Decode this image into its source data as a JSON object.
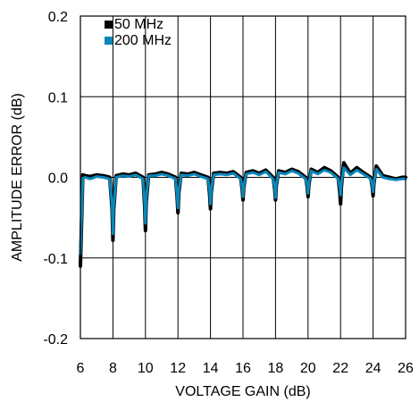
{
  "chart_data": {
    "type": "line",
    "title": "",
    "xlabel": "VOLTAGE GAIN (dB)",
    "ylabel": "AMPLITUDE ERROR (dB)",
    "xlim": [
      6,
      26
    ],
    "ylim": [
      -0.2,
      0.2
    ],
    "x_ticks": [
      "6",
      "8",
      "10",
      "12",
      "14",
      "16",
      "18",
      "20",
      "22",
      "24",
      "26"
    ],
    "y_ticks": [
      "0.2",
      "0.1",
      "0.0",
      "-0.1",
      "-0.2"
    ],
    "x_tick_values": [
      6,
      8,
      10,
      12,
      14,
      16,
      18,
      20,
      22,
      24,
      26
    ],
    "y_tick_values": [
      0.2,
      0.1,
      0.0,
      -0.1,
      -0.2
    ],
    "grid": "vertical",
    "legend_position": "top-left",
    "series": [
      {
        "name": "50 MHz",
        "color": "#000000",
        "x": [
          6.0,
          6.15,
          6.3,
          6.6,
          7.0,
          7.4,
          7.8,
          7.95,
          8.0,
          8.05,
          8.2,
          8.6,
          9.0,
          9.4,
          9.85,
          9.95,
          10.0,
          10.05,
          10.2,
          10.6,
          11.0,
          11.4,
          11.85,
          11.95,
          12.0,
          12.05,
          12.2,
          12.6,
          13.0,
          13.4,
          13.85,
          13.95,
          14.0,
          14.05,
          14.2,
          14.6,
          15.0,
          15.4,
          15.85,
          15.95,
          16.0,
          16.05,
          16.2,
          16.6,
          17.0,
          17.4,
          17.85,
          17.95,
          18.0,
          18.05,
          18.2,
          18.6,
          19.0,
          19.4,
          19.85,
          19.95,
          20.0,
          20.05,
          20.2,
          20.6,
          21.0,
          21.4,
          21.85,
          21.95,
          22.0,
          22.05,
          22.2,
          22.6,
          23.0,
          23.4,
          23.85,
          23.95,
          24.0,
          24.05,
          24.2,
          24.6,
          25.0,
          25.4,
          25.8,
          26.0
        ],
        "y": [
          -0.11,
          0.003,
          0.002,
          0.001,
          0.003,
          0.002,
          0.0,
          -0.04,
          -0.078,
          -0.04,
          0.002,
          0.004,
          0.003,
          0.005,
          0.0,
          -0.035,
          -0.066,
          -0.03,
          0.003,
          0.004,
          0.006,
          0.004,
          0.0,
          -0.025,
          -0.044,
          -0.02,
          0.005,
          0.004,
          0.006,
          0.003,
          0.0,
          -0.022,
          -0.039,
          -0.018,
          0.005,
          0.006,
          0.005,
          0.007,
          0.0,
          -0.015,
          -0.028,
          -0.012,
          0.006,
          0.008,
          0.005,
          0.009,
          0.0,
          -0.015,
          -0.028,
          -0.01,
          0.008,
          0.006,
          0.01,
          0.007,
          0.0,
          -0.012,
          -0.024,
          -0.01,
          0.01,
          0.006,
          0.012,
          0.008,
          0.0,
          -0.018,
          -0.033,
          -0.012,
          0.018,
          0.005,
          0.012,
          0.006,
          0.0,
          -0.012,
          -0.023,
          -0.008,
          0.014,
          0.002,
          0.0,
          -0.002,
          0.0,
          0.0
        ]
      },
      {
        "name": "200 MHz",
        "color": "#0a86b8",
        "x": [
          6.0,
          6.15,
          6.3,
          6.6,
          7.0,
          7.4,
          7.8,
          7.95,
          8.0,
          8.05,
          8.2,
          8.6,
          9.0,
          9.4,
          9.85,
          9.95,
          10.0,
          10.05,
          10.2,
          10.6,
          11.0,
          11.4,
          11.85,
          11.95,
          12.0,
          12.05,
          12.2,
          12.6,
          13.0,
          13.4,
          13.85,
          13.95,
          14.0,
          14.05,
          14.2,
          14.6,
          15.0,
          15.4,
          15.85,
          15.95,
          16.0,
          16.05,
          16.2,
          16.6,
          17.0,
          17.4,
          17.85,
          17.95,
          18.0,
          18.05,
          18.2,
          18.6,
          19.0,
          19.4,
          19.85,
          19.95,
          20.0,
          20.05,
          20.2,
          20.6,
          21.0,
          21.4,
          21.85,
          21.95,
          22.0,
          22.05,
          22.2,
          22.6,
          23.0,
          23.4,
          23.85,
          23.95,
          24.0,
          24.05,
          24.2,
          24.6,
          25.0,
          25.4,
          25.8,
          26.0
        ],
        "y": [
          -0.095,
          -0.001,
          0.0,
          -0.002,
          0.001,
          0.0,
          -0.002,
          -0.035,
          -0.07,
          -0.035,
          0.0,
          0.002,
          0.001,
          0.003,
          -0.002,
          -0.03,
          -0.057,
          -0.025,
          0.002,
          0.002,
          0.004,
          0.002,
          -0.002,
          -0.022,
          -0.038,
          -0.017,
          0.003,
          0.002,
          0.004,
          0.001,
          -0.002,
          -0.018,
          -0.033,
          -0.015,
          0.003,
          0.004,
          0.003,
          0.005,
          -0.002,
          -0.012,
          -0.024,
          -0.01,
          0.004,
          0.006,
          0.003,
          0.007,
          -0.002,
          -0.013,
          -0.025,
          -0.008,
          0.006,
          0.004,
          0.008,
          0.005,
          -0.002,
          -0.01,
          -0.02,
          -0.008,
          0.008,
          0.004,
          0.009,
          0.006,
          -0.002,
          -0.012,
          -0.022,
          -0.008,
          0.012,
          0.003,
          0.009,
          0.004,
          -0.002,
          -0.01,
          -0.018,
          -0.006,
          0.01,
          0.0,
          -0.002,
          -0.003,
          -0.002,
          -0.002
        ]
      }
    ]
  }
}
